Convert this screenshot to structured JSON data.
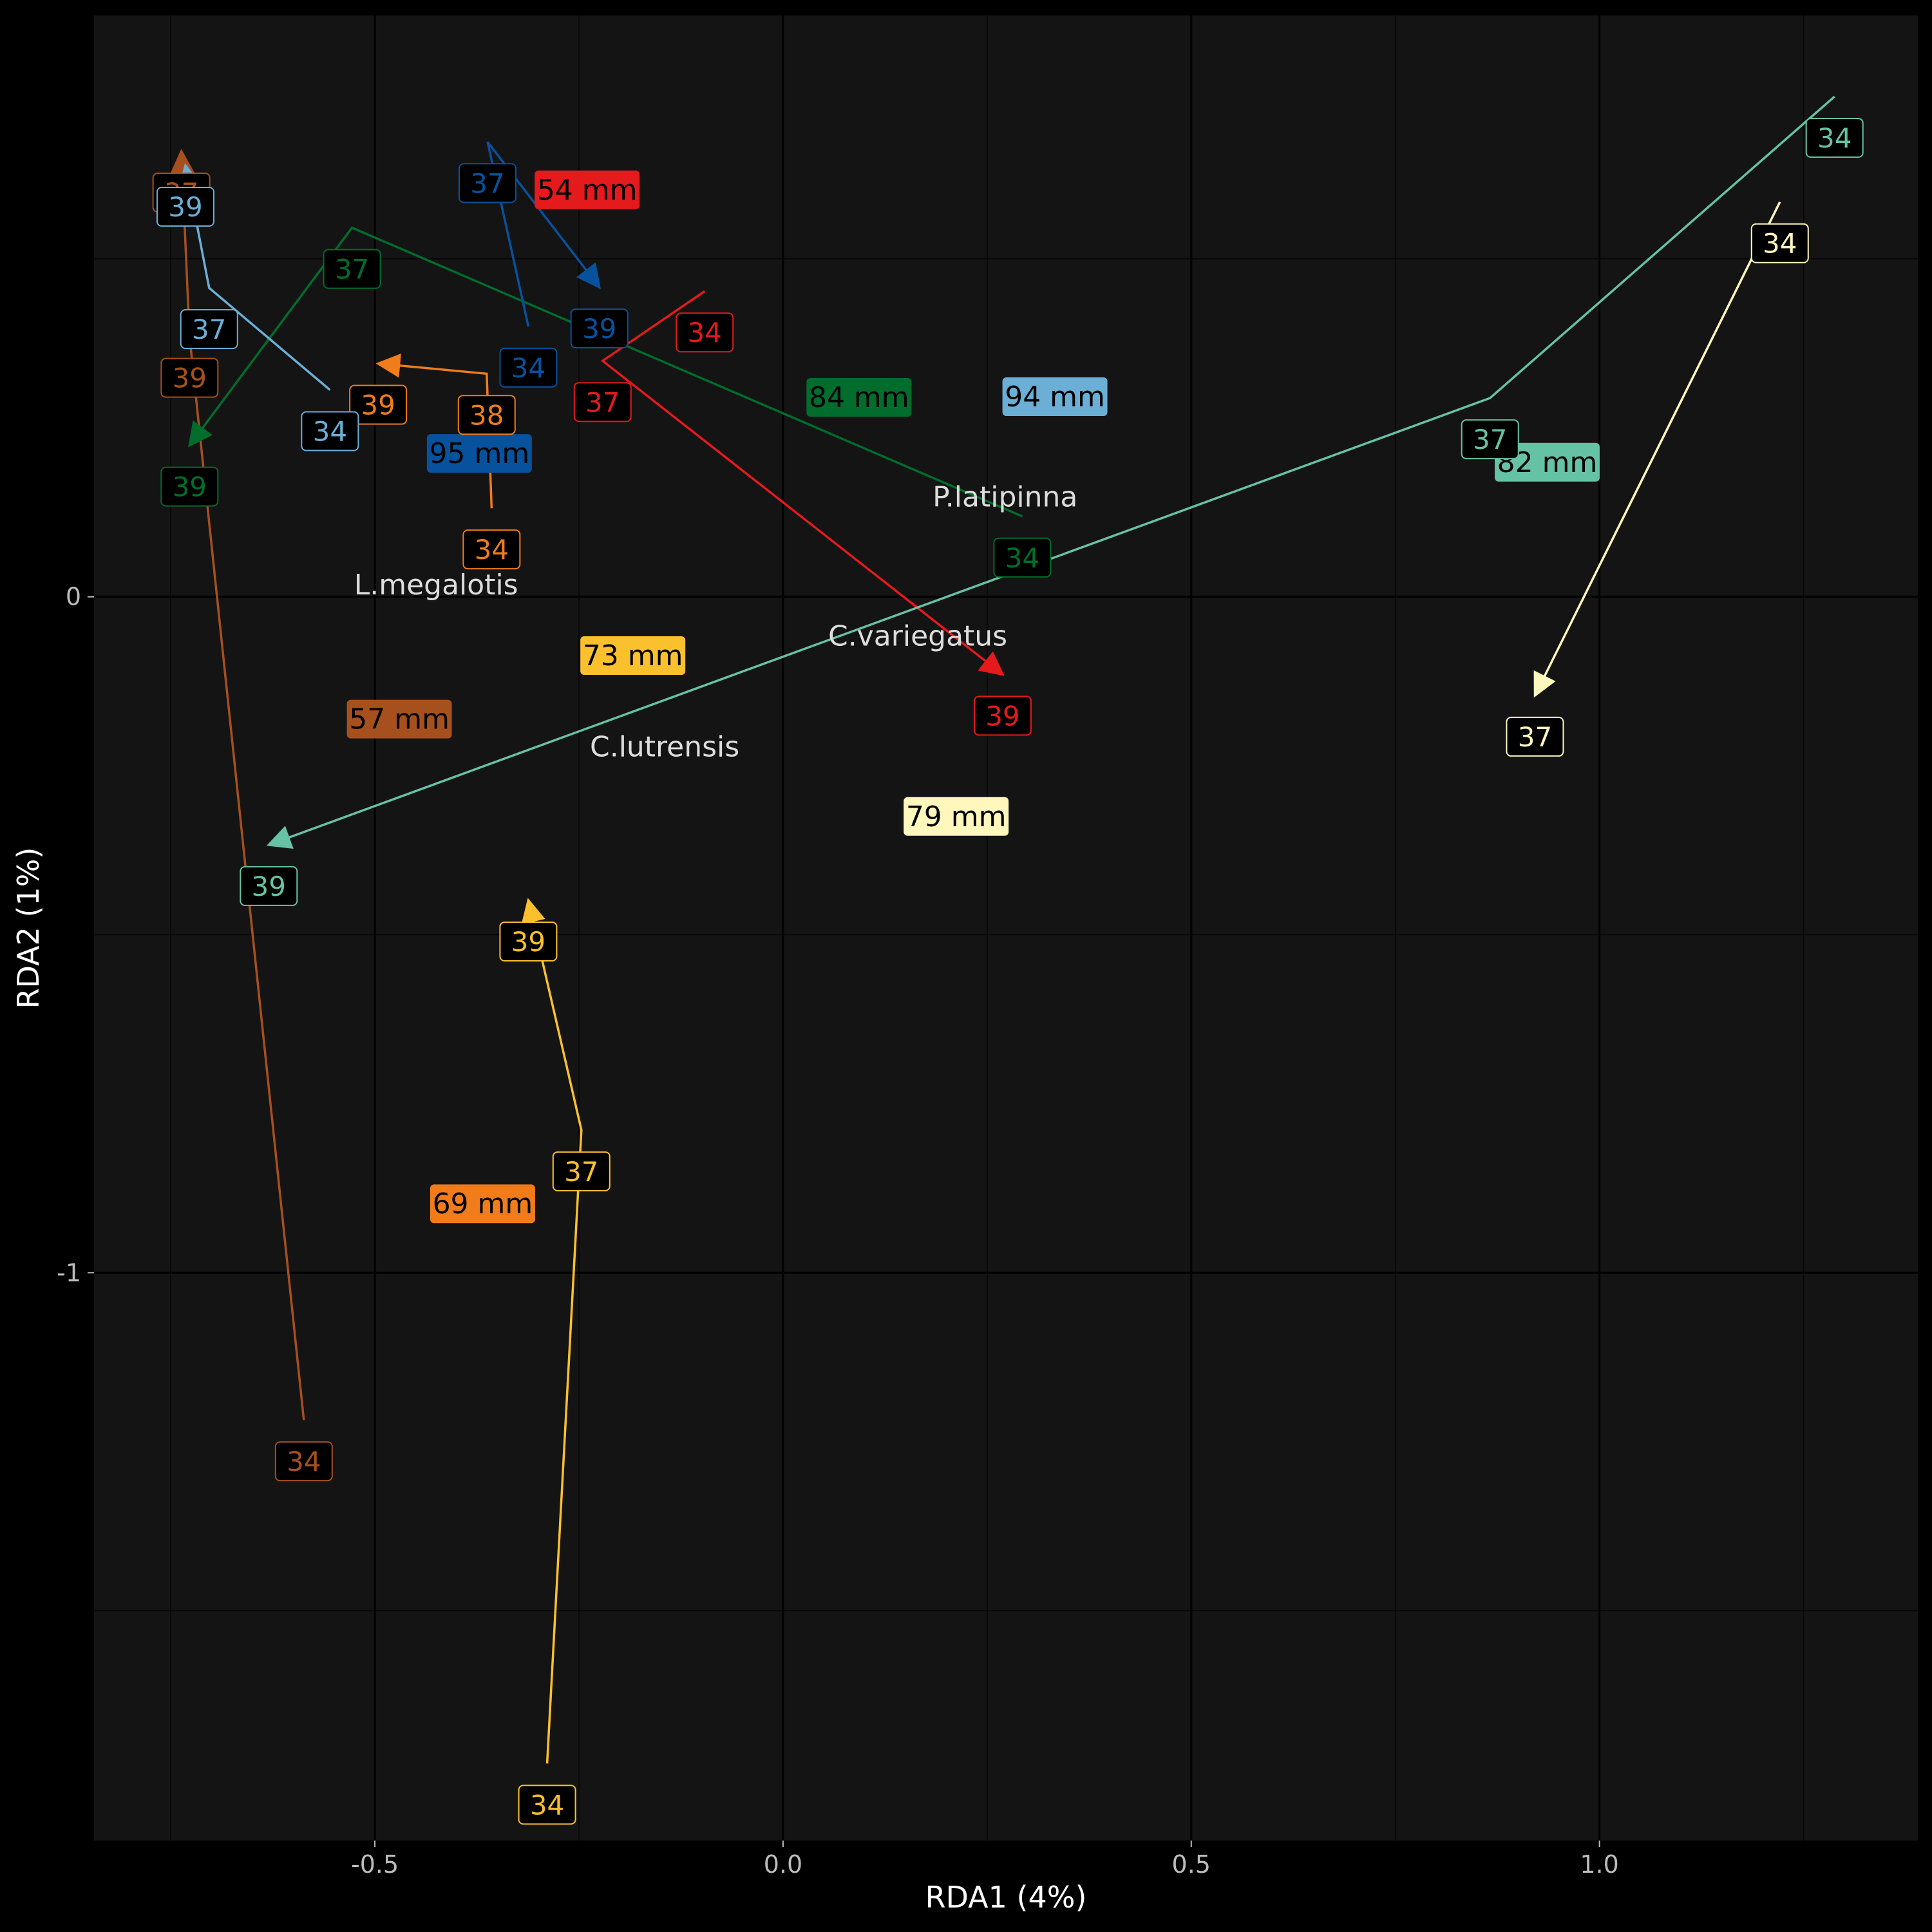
{
  "chart_data": {
    "type": "scatter",
    "xlabel": "RDA1 (4%)",
    "ylabel": "RDA2 (1%)",
    "xlim": [
      -0.844,
      1.39
    ],
    "ylim": [
      -1.84,
      0.86
    ],
    "x_ticks": [
      {
        "value": -0.5,
        "label": "-0.5"
      },
      {
        "value": 0.0,
        "label": "0.0"
      },
      {
        "value": 0.5,
        "label": "0.5"
      },
      {
        "value": 1.0,
        "label": "1.0"
      }
    ],
    "y_ticks": [
      {
        "value": 0,
        "label": "0"
      },
      {
        "value": -1,
        "label": "-1"
      }
    ],
    "x_minor_grid": [
      -0.75,
      -0.25,
      0.25,
      0.75,
      1.25
    ],
    "y_minor_grid": [
      0.5,
      -0.5,
      -1.5
    ],
    "grid": true,
    "panel_background": "#141414",
    "species": [
      {
        "name": "P.latipinna",
        "x": 0.272,
        "y": 0.148
      },
      {
        "name": "L.megalotis",
        "x": -0.425,
        "y": 0.018
      },
      {
        "name": "C.variegatus",
        "x": 0.165,
        "y": -0.058
      },
      {
        "name": "C.lutrensis",
        "x": -0.145,
        "y": -0.222
      }
    ],
    "series": [
      {
        "size_label": "54 mm",
        "color": "#e41a1c",
        "label_pos": {
          "x": -0.24,
          "y": 0.602
        },
        "points": [
          {
            "label": "34",
            "x": -0.096,
            "y": 0.452
          },
          {
            "label": "37",
            "x": -0.221,
            "y": 0.349
          },
          {
            "label": "39",
            "x": 0.269,
            "y": -0.115
          }
        ]
      },
      {
        "size_label": "57 mm",
        "color": "#a6501e",
        "label_pos": {
          "x": -0.47,
          "y": -0.181
        },
        "points": [
          {
            "label": "34",
            "x": -0.587,
            "y": -1.218
          },
          {
            "label": "39",
            "x": -0.727,
            "y": 0.385
          },
          {
            "label": "37",
            "x": -0.737,
            "y": 0.659
          }
        ]
      },
      {
        "size_label": "69 mm",
        "color": "#f07c1c",
        "label_pos": {
          "x": -0.368,
          "y": -0.898
        },
        "points": [
          {
            "label": "34",
            "x": -0.357,
            "y": 0.131
          },
          {
            "label": "38",
            "x": -0.363,
            "y": 0.33
          },
          {
            "label": "39",
            "x": -0.496,
            "y": 0.345
          }
        ]
      },
      {
        "size_label": "73 mm",
        "color": "#fbc02d",
        "label_pos": {
          "x": -0.184,
          "y": -0.087
        },
        "points": [
          {
            "label": "34",
            "x": -0.289,
            "y": -1.726
          },
          {
            "label": "37",
            "x": -0.247,
            "y": -0.789
          },
          {
            "label": "39",
            "x": -0.312,
            "y": -0.449
          }
        ]
      },
      {
        "size_label": "79 mm",
        "color": "#fff7bc",
        "label_pos": {
          "x": 0.212,
          "y": -0.325
        },
        "points": [
          {
            "label": "34",
            "x": 1.221,
            "y": 0.584
          },
          {
            "label": "37",
            "x": 0.921,
            "y": -0.146
          }
        ]
      },
      {
        "size_label": "82 mm",
        "color": "#66c2a5",
        "label_pos": {
          "x": 0.936,
          "y": 0.199
        },
        "points": [
          {
            "label": "34",
            "x": 1.288,
            "y": 0.74
          },
          {
            "label": "37",
            "x": 0.866,
            "y": 0.294
          },
          {
            "label": "39",
            "x": -0.63,
            "y": -0.367
          }
        ]
      },
      {
        "size_label": "84 mm",
        "color": "#006d2c",
        "label_pos": {
          "x": 0.093,
          "y": 0.295
        },
        "points": [
          {
            "label": "34",
            "x": 0.293,
            "y": 0.119
          },
          {
            "label": "37",
            "x": -0.528,
            "y": 0.546
          },
          {
            "label": "39",
            "x": -0.727,
            "y": 0.224
          }
        ]
      },
      {
        "size_label": "94 mm",
        "color": "#6baed6",
        "label_pos": {
          "x": 0.333,
          "y": 0.296
        },
        "points": [
          {
            "label": "34",
            "x": -0.555,
            "y": 0.306
          },
          {
            "label": "37",
            "x": -0.703,
            "y": 0.457
          },
          {
            "label": "39",
            "x": -0.732,
            "y": 0.638
          }
        ]
      },
      {
        "size_label": "95 mm",
        "color": "#08519c",
        "label_pos": {
          "x": -0.372,
          "y": 0.212
        },
        "points": [
          {
            "label": "34",
            "x": -0.312,
            "y": 0.4
          },
          {
            "label": "37",
            "x": -0.362,
            "y": 0.673
          },
          {
            "label": "39",
            "x": -0.225,
            "y": 0.458
          }
        ]
      }
    ]
  }
}
